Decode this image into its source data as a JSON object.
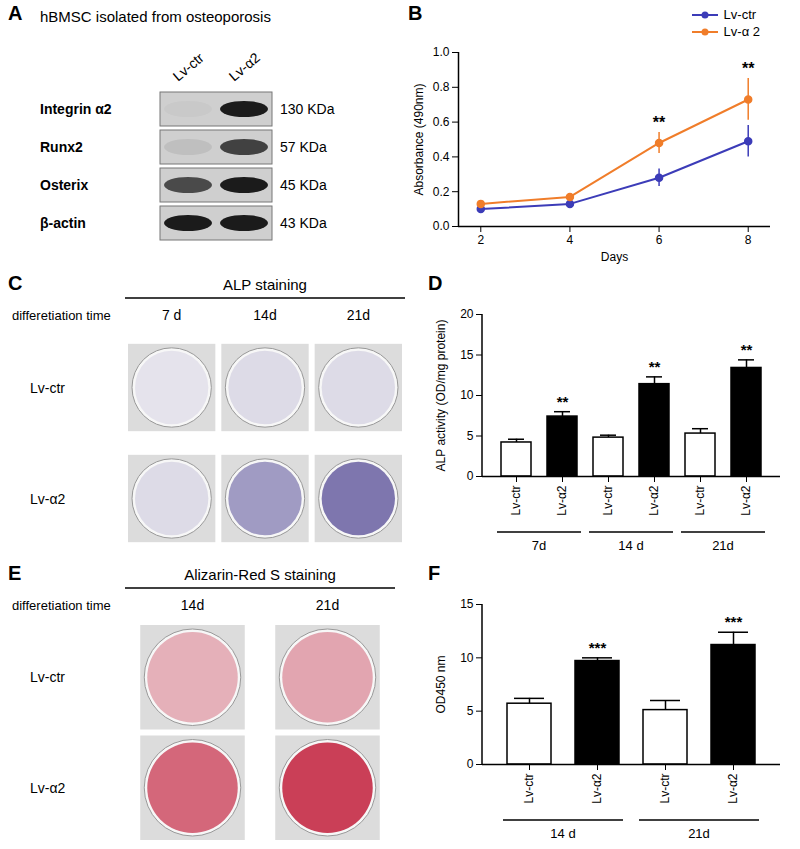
{
  "chart_data": [
    {
      "panel": "B",
      "type": "line",
      "x_label": "Days",
      "y_label": "Absorbance (490nm)",
      "x": [
        2,
        4,
        6,
        8
      ],
      "xlim": [
        1.5,
        8.5
      ],
      "xticks": [
        2,
        4,
        6,
        8
      ],
      "ylim": [
        0,
        1
      ],
      "yticks": [
        {
          "value": 0,
          "label": "0.0"
        },
        0.2,
        0.4,
        0.6,
        0.8,
        {
          "value": 1,
          "label": "1.0"
        }
      ],
      "legend": "top-right",
      "marker": "circle",
      "series": [
        {
          "name": "Lv-ctr",
          "color": "#3c3cb8",
          "values": [
            0.1,
            0.13,
            0.28,
            0.49
          ],
          "errors": [
            0.01,
            0.02,
            0.05,
            0.09
          ]
        },
        {
          "name": "Lv-α 2",
          "color": "#f07d2a",
          "values": [
            0.13,
            0.17,
            0.48,
            0.73
          ],
          "errors": [
            0.02,
            0.02,
            0.06,
            0.12
          ]
        }
      ],
      "annotations": [
        {
          "x": 6,
          "text": "**"
        },
        {
          "x": 8,
          "text": "**"
        }
      ]
    },
    {
      "panel": "D",
      "type": "bar",
      "y_label": "ALP activity (OD/mg protein)",
      "categories": [
        "Lv-ctr",
        "Lv-α2",
        "Lv-ctr",
        "Lv-α2",
        "Lv-ctr",
        "Lv-α2"
      ],
      "values": [
        4.2,
        7.4,
        4.8,
        11.4,
        5.3,
        13.4
      ],
      "errors": [
        0.4,
        0.6,
        0.3,
        0.9,
        0.6,
        1.0
      ],
      "colors": [
        "#ffffff",
        "#000000",
        "#ffffff",
        "#000000",
        "#ffffff",
        "#000000"
      ],
      "significance": [
        null,
        "**",
        null,
        "**",
        null,
        "**"
      ],
      "groups": [
        {
          "label": "7d",
          "count": 2
        },
        {
          "label": "14 d",
          "count": 2
        },
        {
          "label": "21d",
          "count": 2
        }
      ],
      "ylim": [
        0,
        20
      ],
      "yticks": [
        0,
        5,
        10,
        15,
        20
      ]
    },
    {
      "panel": "F",
      "type": "bar",
      "y_label": "OD450 nm",
      "categories": [
        "Lv-ctr",
        "Lv-α2",
        "Lv-ctr",
        "Lv-α2"
      ],
      "values": [
        5.7,
        9.7,
        5.1,
        11.2
      ],
      "errors": [
        0.5,
        0.3,
        0.9,
        1.2
      ],
      "colors": [
        "#ffffff",
        "#000000",
        "#ffffff",
        "#000000"
      ],
      "significance": [
        null,
        "***",
        null,
        "***"
      ],
      "groups": [
        {
          "label": "14 d",
          "count": 2
        },
        {
          "label": "21d",
          "count": 2
        }
      ],
      "ylim": [
        0,
        15
      ],
      "yticks": [
        0,
        5,
        10,
        15
      ]
    }
  ],
  "figures": [
    {
      "panel": "A",
      "type": "western_blot",
      "title": "hBMSC isolated  from osteoporosis",
      "lanes": [
        "Lv-ctr",
        "Lv-α2"
      ],
      "bands": [
        {
          "protein": "Integrin α2",
          "size": "130 KDa",
          "intensity": [
            0.03,
            0.95
          ]
        },
        {
          "protein": "Runx2",
          "size": "57 KDa",
          "intensity": [
            0.08,
            0.75
          ]
        },
        {
          "protein": "Osterix",
          "size": "45 KDa",
          "intensity": [
            0.7,
            0.95
          ]
        },
        {
          "protein": "β-actin",
          "size": "43 KDa",
          "intensity": [
            0.95,
            0.95
          ]
        }
      ]
    },
    {
      "panel": "C",
      "type": "staining",
      "title": "ALP staining",
      "row_header": "differetiation time",
      "columns": [
        "7 d",
        "14d",
        "21d"
      ],
      "rows": [
        "Lv-ctr",
        "Lv-α2"
      ],
      "color": "#4a3f8f",
      "intensity": [
        [
          0.1,
          0.15,
          0.15
        ],
        [
          0.15,
          0.5,
          0.7
        ]
      ]
    },
    {
      "panel": "E",
      "type": "staining",
      "title": "Alizarin-Red S staining",
      "row_header": "differetiation time",
      "columns": [
        "14d",
        "21d"
      ],
      "rows": [
        "Lv-ctr",
        "Lv-α2"
      ],
      "color": "#c42a45",
      "intensity": [
        [
          0.35,
          0.4
        ],
        [
          0.7,
          0.9
        ]
      ]
    }
  ]
}
